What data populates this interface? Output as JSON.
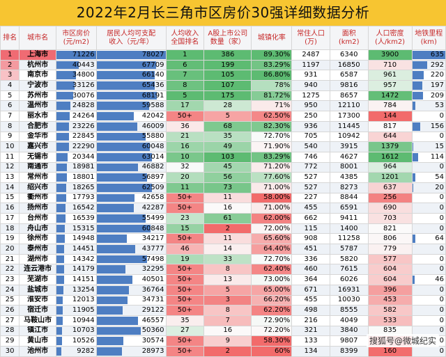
{
  "title": "2022年2月长三角市区房价30强详细数据分析",
  "headers": [
    "排名",
    "城市名",
    "市区房价\n(元/m2)",
    "居民人均可支配\n收入（元/年）",
    "人均收入\n全国排名",
    "A股上市公司\n数量（家）",
    "城镇化率",
    "常住人口\n(万)",
    "面积\n(km2)",
    "人口密度\n(人/km2)",
    "地铁里程\n(km)"
  ],
  "watermark": "搜狐号@微城纪实",
  "colors": {
    "accent_red": "#c62828",
    "title_bg": "#f7c531",
    "bar_blue": "#4e7ec2"
  },
  "rows": [
    [
      "1",
      "上海市",
      "71226",
      "78027",
      "1",
      "386",
      "89.30%",
      "2487",
      "6340",
      "3900",
      "635"
    ],
    [
      "2",
      "杭州市",
      "40443",
      "67709",
      "6",
      "199",
      "83.29%",
      "1197",
      "16850",
      "710",
      "292"
    ],
    [
      "3",
      "南京市",
      "34800",
      "66140",
      "7",
      "105",
      "86.80%",
      "931",
      "6587",
      "961",
      "220"
    ],
    [
      "4",
      "宁波市",
      "33126",
      "65436",
      "8",
      "107",
      "78%",
      "940",
      "9816",
      "957",
      "197"
    ],
    [
      "5",
      "苏州市",
      "30076",
      "68191",
      "5",
      "175",
      "81.72%",
      "1275",
      "8657",
      "1472",
      "209"
    ],
    [
      "6",
      "温州市",
      "24828",
      "59588",
      "17",
      "28",
      "71%",
      "950",
      "12110",
      "784",
      "53"
    ],
    [
      "7",
      "丽水市",
      "24264",
      "42042",
      "50+",
      "5",
      "62.50%",
      "250",
      "17300",
      "144",
      "0"
    ],
    [
      "8",
      "合肥市",
      "23226",
      "46009",
      "36",
      "68",
      "82.30%",
      "936",
      "11445",
      "817",
      "156"
    ],
    [
      "9",
      "金华市",
      "22845",
      "55880",
      "21",
      "35",
      "72.70%",
      "705",
      "10942",
      "644",
      "0"
    ],
    [
      "10",
      "嘉兴市",
      "22290",
      "60048",
      "16",
      "49",
      "71.90%",
      "540",
      "3915",
      "1379",
      "15"
    ],
    [
      "11",
      "无锡市",
      "20344",
      "63014",
      "10",
      "103",
      "83.29%",
      "746",
      "4627",
      "1612",
      "114"
    ],
    [
      "12",
      "南通市",
      "18981",
      "46882",
      "32",
      "45",
      "71.20%",
      "772",
      "8001",
      "964",
      "0"
    ],
    [
      "13",
      "常州市",
      "18801",
      "56897",
      "20",
      "56",
      "77.60%",
      "527",
      "4385",
      "1201",
      "54"
    ],
    [
      "14",
      "绍兴市",
      "18265",
      "62509",
      "11",
      "73",
      "71.00%",
      "527",
      "8273",
      "637",
      "20"
    ],
    [
      "15",
      "衢州市",
      "17793",
      "42658",
      "50+",
      "11",
      "58.00%",
      "227",
      "8844",
      "256",
      "0"
    ],
    [
      "16",
      "扬州市",
      "16542",
      "42287",
      "50+",
      "16",
      "71.00%",
      "455",
      "6591",
      "690",
      "0"
    ],
    [
      "17",
      "台州市",
      "16539",
      "55499",
      "23",
      "61",
      "62.00%",
      "662",
      "9411",
      "703",
      "0"
    ],
    [
      "18",
      "舟山市",
      "15315",
      "60848",
      "15",
      "2",
      "72.00%",
      "115",
      "1400",
      "821",
      "0"
    ],
    [
      "19",
      "徐州市",
      "14948",
      "34217",
      "50+",
      "11",
      "65.60%",
      "908",
      "11258",
      "806",
      "64"
    ],
    [
      "20",
      "泰州市",
      "14451",
      "43777",
      "46",
      "14",
      "64.40%",
      "451",
      "5787",
      "779",
      "0"
    ],
    [
      "21",
      "湖州市",
      "14342",
      "57498",
      "19",
      "33",
      "72.70%",
      "336",
      "5820",
      "577",
      "0"
    ],
    [
      "22",
      "连云港市",
      "14179",
      "32295",
      "50+",
      "8",
      "62.40%",
      "460",
      "7615",
      "604",
      "0"
    ],
    [
      "23",
      "芜湖市",
      "14151",
      "40501",
      "50+",
      "13",
      "73.00%",
      "364",
      "6026",
      "604",
      "46"
    ],
    [
      "24",
      "盐城市",
      "13254",
      "36764",
      "50+",
      "5",
      "65.00%",
      "671",
      "16931",
      "396",
      "0"
    ],
    [
      "25",
      "淮安市",
      "12013",
      "34731",
      "50+",
      "3",
      "66.20%",
      "455",
      "10030",
      "453",
      "0"
    ],
    [
      "26",
      "宿迁市",
      "11905",
      "29122",
      "50+",
      "8",
      "62.20%",
      "498",
      "8555",
      "582",
      "0"
    ],
    [
      "27",
      "马鞍山市",
      "10944",
      "46557",
      "35",
      "7",
      "72.90%",
      "216",
      "4049",
      "533",
      "0"
    ],
    [
      "28",
      "镇江市",
      "10703",
      "50360",
      "27",
      "16",
      "72.20%",
      "321",
      "3840",
      "835",
      "0"
    ],
    [
      "29",
      "黄山市",
      "10526",
      "30574",
      "50+",
      "9",
      "58.30%",
      "133",
      "9807",
      "135",
      "0"
    ],
    [
      "30",
      "池州市",
      "9282",
      "28973",
      "50+",
      "2",
      "60%",
      "134",
      "8399",
      "160",
      "0"
    ]
  ]
}
